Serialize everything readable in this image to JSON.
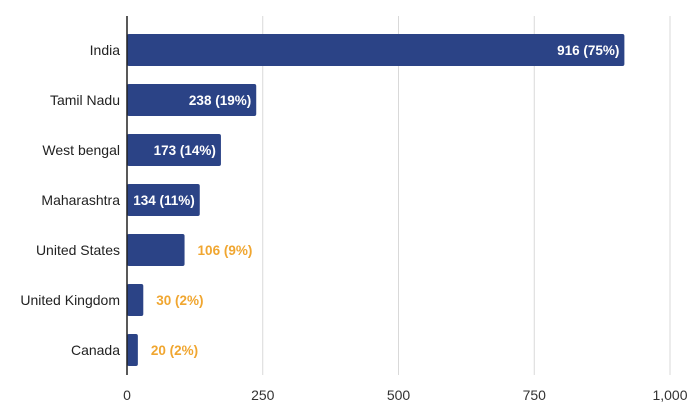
{
  "chart_data": {
    "type": "bar",
    "orientation": "horizontal",
    "categories": [
      "India",
      "Tamil Nadu",
      "West bengal",
      "Maharashtra",
      "United States",
      "United Kingdom",
      "Canada"
    ],
    "values": [
      916,
      238,
      173,
      134,
      106,
      30,
      20
    ],
    "data_labels": [
      "916 (75%)",
      "238 (19%)",
      "173 (14%)",
      "134 (11%)",
      "106 (9%)",
      "30 (2%)",
      "20 (2%)"
    ],
    "xlim": [
      0,
      1000
    ],
    "ticks": [
      "0",
      "250",
      "500",
      "750",
      "1,000"
    ],
    "tick_values": [
      0,
      250,
      500,
      750,
      1000
    ],
    "grid": true,
    "title": "",
    "xlabel": "",
    "ylabel": ""
  },
  "colors": {
    "bar": "#2b4386",
    "label_inside": "#ffffff",
    "label_outside": "#f0a630",
    "grid": "#d9d9d9",
    "axis": "#222222"
  }
}
